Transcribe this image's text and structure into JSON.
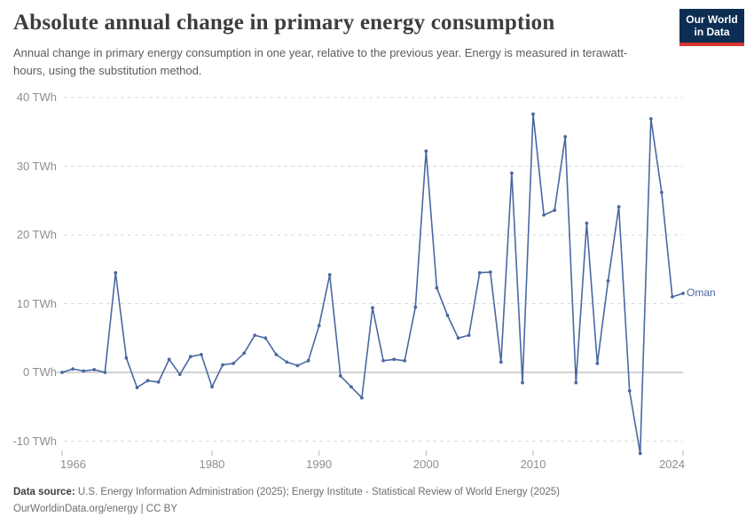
{
  "header": {
    "title": "Absolute annual change in primary energy consumption",
    "subtitle": "Annual change in primary energy consumption in one year, relative to the previous year. Energy is measured in terawatt-hours, using the substitution method.",
    "logo": {
      "line1": "Our World",
      "line2": "in Data",
      "bg": "#0d2e52",
      "accent": "#d8362e"
    }
  },
  "chart_data": {
    "type": "line",
    "series_label": "Oman",
    "unit": "TWh",
    "line_color": "#4a68a1",
    "x": [
      1966,
      1967,
      1968,
      1969,
      1970,
      1971,
      1972,
      1973,
      1974,
      1975,
      1976,
      1977,
      1978,
      1979,
      1980,
      1981,
      1982,
      1983,
      1984,
      1985,
      1986,
      1987,
      1988,
      1989,
      1990,
      1991,
      1992,
      1993,
      1994,
      1995,
      1996,
      1997,
      1998,
      1999,
      2000,
      2001,
      2002,
      2003,
      2004,
      2005,
      2006,
      2007,
      2008,
      2009,
      2010,
      2011,
      2012,
      2013,
      2014,
      2015,
      2016,
      2017,
      2018,
      2019,
      2020,
      2021,
      2022,
      2023,
      2024
    ],
    "values": [
      0.0,
      0.5,
      0.2,
      0.4,
      0.0,
      14.5,
      2.1,
      -2.2,
      -1.2,
      -1.4,
      1.9,
      -0.3,
      2.3,
      2.6,
      -2.1,
      1.1,
      1.3,
      2.8,
      5.4,
      5.0,
      2.6,
      1.5,
      1.0,
      1.7,
      6.8,
      14.2,
      -0.5,
      -2.1,
      -3.7,
      9.4,
      1.7,
      1.9,
      1.7,
      9.5,
      32.2,
      12.3,
      8.3,
      5.0,
      5.4,
      14.5,
      14.6,
      1.5,
      29.0,
      -1.5,
      37.6,
      22.9,
      23.6,
      34.3,
      -1.5,
      21.7,
      1.3,
      13.3,
      24.1,
      -2.7,
      -11.8,
      36.9,
      26.2,
      11.0,
      11.5
    ],
    "yticks": [
      {
        "value": 40,
        "label": "40 TWh"
      },
      {
        "value": 30,
        "label": "30 TWh"
      },
      {
        "value": 20,
        "label": "20 TWh"
      },
      {
        "value": 10,
        "label": "10 TWh"
      },
      {
        "value": 0,
        "label": "0 TWh"
      },
      {
        "value": -10,
        "label": "-10 TWh"
      }
    ],
    "xticks": [
      1966,
      1980,
      1990,
      2000,
      2010,
      2024
    ],
    "xlim": [
      1966,
      2024
    ],
    "ylim": [
      -10,
      40
    ],
    "grid": "dashed-horizontal"
  },
  "footer": {
    "datasource_label": "Data source:",
    "datasource_text": "U.S. Energy Information Administration (2025); Energy Institute - Statistical Review of World Energy (2025)",
    "license_line": "OurWorldinData.org/energy | CC BY"
  }
}
